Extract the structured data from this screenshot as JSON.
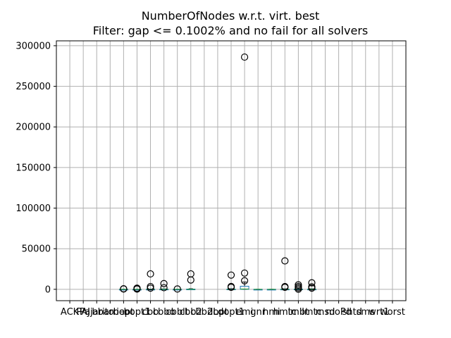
{
  "chart_data": {
    "type": "box",
    "title": "NumberOfNodes w.r.t. virt. best",
    "subtitle": "Filter: gap <= 0.1002% and no fail for all solvers",
    "ylim": [
      -14000,
      306000
    ],
    "yticks": [
      0,
      50000,
      100000,
      150000,
      200000,
      250000,
      300000
    ],
    "grid": true,
    "categories": [
      "ACK",
      "PAJ",
      "Pajarito",
      "bbarrier",
      "bopt",
      "bopt1",
      "cbb",
      "cbbo",
      "cbblt",
      "cbb2",
      "cbb2L",
      "dopt",
      "dopt1",
      "emi",
      "gnr",
      "hmi",
      "hmtc",
      "lmbt",
      "lmtc",
      "msd",
      "moPd",
      "shtd",
      "sms",
      "wrt1",
      "worst"
    ],
    "series": [
      {
        "category": "ACK",
        "empty": true
      },
      {
        "category": "PAJ",
        "empty": true
      },
      {
        "category": "Pajarito",
        "empty": true
      },
      {
        "category": "bbarrier",
        "empty": true
      },
      {
        "category": "bopt",
        "q1": 0,
        "median": 0,
        "q3": 0,
        "whisker_low": 0,
        "whisker_high": 0,
        "fliers": [
          400,
          700
        ]
      },
      {
        "category": "bopt1",
        "q1": 0,
        "median": 0,
        "q3": 0,
        "whisker_low": 0,
        "whisker_high": 0,
        "fliers": [
          300,
          600,
          1400
        ]
      },
      {
        "category": "cbb",
        "q1": 0,
        "median": 0,
        "q3": 100,
        "whisker_low": 0,
        "whisker_high": 300,
        "fliers": [
          1500,
          3400,
          19000
        ]
      },
      {
        "category": "cbbo",
        "q1": 0,
        "median": 0,
        "q3": 200,
        "whisker_low": 0,
        "whisker_high": 500,
        "fliers": [
          2000,
          7000
        ]
      },
      {
        "category": "cbblt",
        "q1": 0,
        "median": 0,
        "q3": 0,
        "whisker_low": 0,
        "whisker_high": 0,
        "fliers": [
          400
        ]
      },
      {
        "category": "cbb2",
        "q1": 0,
        "median": 0,
        "q3": 300,
        "whisker_low": 0,
        "whisker_high": 700,
        "fliers": [
          11500,
          19000
        ]
      },
      {
        "category": "cbb2L",
        "empty": true
      },
      {
        "category": "dopt",
        "empty": true
      },
      {
        "category": "dopt1",
        "q1": 0,
        "median": 0,
        "q3": 300,
        "whisker_low": 0,
        "whisker_high": 700,
        "fliers": [
          2500,
          3500,
          17500
        ]
      },
      {
        "category": "emi",
        "q1": 0,
        "median": 400,
        "q3": 3800,
        "whisker_low": 0,
        "whisker_high": 9000,
        "fliers": [
          10500,
          20000,
          286000
        ]
      },
      {
        "category": "gnr",
        "q1": 0,
        "median": 0,
        "q3": 0,
        "whisker_low": 0,
        "whisker_high": 0,
        "fliers": []
      },
      {
        "category": "hmi",
        "q1": 0,
        "median": 0,
        "q3": 0,
        "whisker_low": 0,
        "whisker_high": 0,
        "fliers": []
      },
      {
        "category": "hmtc",
        "q1": 0,
        "median": 0,
        "q3": 200,
        "whisker_low": 0,
        "whisker_high": 600,
        "fliers": [
          2500,
          3400,
          35000
        ]
      },
      {
        "category": "lmbt",
        "q1": 0,
        "median": 0,
        "q3": 300,
        "whisker_low": 0,
        "whisker_high": 800,
        "fliers": [
          200,
          1800,
          3500,
          5500
        ]
      },
      {
        "category": "lmtc",
        "q1": 0,
        "median": 0,
        "q3": 200,
        "whisker_low": 0,
        "whisker_high": 600,
        "fliers": [
          1500,
          3000,
          8000
        ]
      },
      {
        "category": "msd",
        "empty": true
      },
      {
        "category": "moPd",
        "empty": true
      },
      {
        "category": "shtd",
        "empty": true
      },
      {
        "category": "sms",
        "empty": true
      },
      {
        "category": "wrt1",
        "empty": true
      },
      {
        "category": "worst",
        "empty": true
      }
    ]
  }
}
